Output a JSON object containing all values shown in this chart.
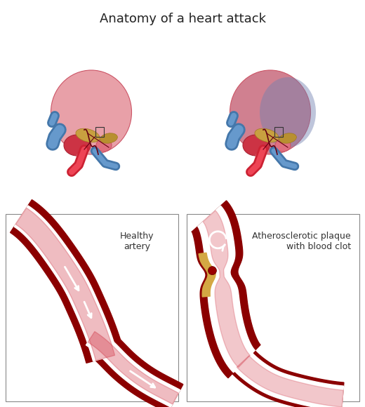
{
  "title": "Anatomy of a heart attack",
  "title_fontsize": 13,
  "bg_color": "#ffffff",
  "heart_color_healthy": "#e8a0a0",
  "heart_color_attack": "#c08090",
  "heart_dark": "#8b0000",
  "blue_vessel": "#5599cc",
  "gold_color": "#c8a84b",
  "artery_red": "#8b0000",
  "artery_mid": "#b22222",
  "label_healthy": "Healthy\nartery",
  "label_attack": "Atherosclerotic plaque\nwith blood clot",
  "box_color": "#333333",
  "plaque_color": "#d4a843",
  "clot_color": "#990000"
}
